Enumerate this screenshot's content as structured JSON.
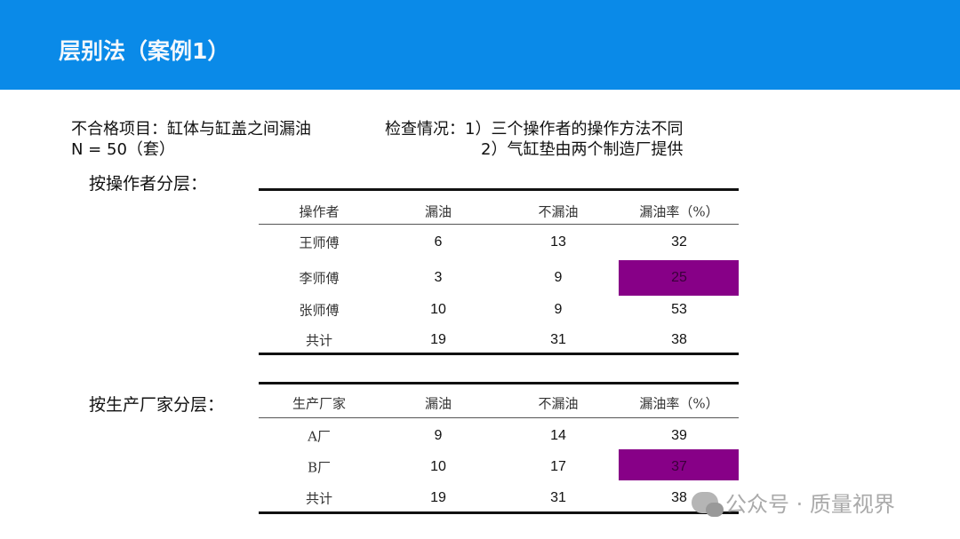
{
  "title": "层别法（案例1）",
  "intro": {
    "item": "不合格项目：缸体与缸盖之间漏油",
    "n": "N = 50（套）",
    "check1": "检查情况：1）三个操作者的操作方法不同",
    "check2": "2）气缸垫由两个制造厂提供"
  },
  "highlight_color": "#870087",
  "table1": {
    "label": "按操作者分层：",
    "headers": [
      "操作者",
      "漏油",
      "不漏油",
      "漏油率（%）"
    ],
    "rows": [
      [
        "王师傅",
        "6",
        "13",
        "32"
      ],
      [
        "李师傅",
        "3",
        "9",
        "25"
      ],
      [
        "张师傅",
        "10",
        "9",
        "53"
      ],
      [
        "共计",
        "19",
        "31",
        "38"
      ]
    ],
    "highlighted_row": 1
  },
  "table2": {
    "label": "按生产厂家分层：",
    "headers": [
      "生产厂家",
      "漏油",
      "不漏油",
      "漏油率（%）"
    ],
    "rows": [
      [
        "A厂",
        "9",
        "14",
        "39"
      ],
      [
        "B厂",
        "10",
        "17",
        "37"
      ],
      [
        "共计",
        "19",
        "31",
        "38"
      ]
    ],
    "highlighted_row": 1
  },
  "watermark": "公众号 · 质量视界"
}
